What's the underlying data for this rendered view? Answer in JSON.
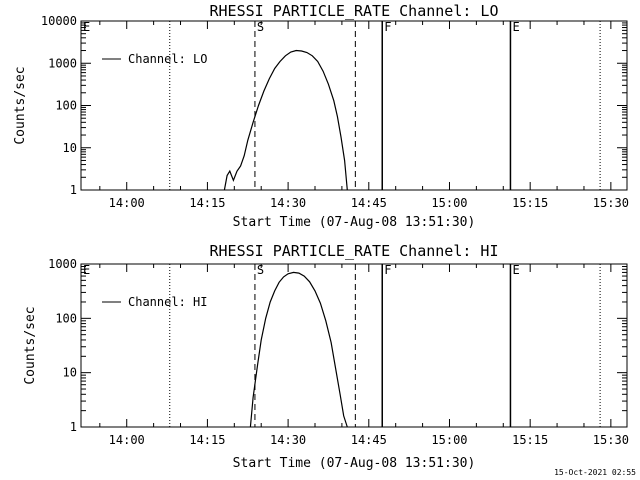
{
  "chart_data": [
    {
      "type": "line",
      "title": "RHESSI PARTICLE_RATE Channel: LO",
      "xlabel": "Start Time (07-Aug-08 13:51:30)",
      "ylabel": "Counts/sec",
      "yscale": "log",
      "xlim": [
        "13:51:30",
        "15:33:00"
      ],
      "ylim": [
        1,
        10000
      ],
      "x_ticks": [
        "14:00",
        "14:15",
        "14:30",
        "14:45",
        "15:00",
        "15:15",
        "15:30"
      ],
      "y_ticks": [
        "1",
        "10",
        "100",
        "1000",
        "10000"
      ],
      "legend": {
        "position": "top-left",
        "entries": [
          "Channel: LO"
        ]
      },
      "series": [
        {
          "name": "Channel: LO",
          "x": [
            "14:18:10",
            "14:18:40",
            "14:19:10",
            "14:19:50",
            "14:20:30",
            "14:21:10",
            "14:21:50",
            "14:22:30",
            "14:23:30",
            "14:24:30",
            "14:25:30",
            "14:26:30",
            "14:27:30",
            "14:28:30",
            "14:29:30",
            "14:30:30",
            "14:31:30",
            "14:32:30",
            "14:33:30",
            "14:34:30",
            "14:35:30",
            "14:36:30",
            "14:37:30",
            "14:38:30",
            "14:39:10",
            "14:39:50",
            "14:40:30",
            "14:41:00"
          ],
          "y": [
            1.0,
            2.2,
            2.8,
            1.7,
            2.8,
            3.7,
            6.5,
            15,
            40,
            100,
            220,
            430,
            750,
            1100,
            1500,
            1850,
            2000,
            1950,
            1800,
            1500,
            1100,
            650,
            320,
            130,
            55,
            18,
            5,
            1.0
          ]
        }
      ],
      "markers": [
        {
          "label": "E",
          "time": "13:51:30",
          "style": "dotted"
        },
        {
          "label": "",
          "time": "14:08:00",
          "style": "dotted"
        },
        {
          "label": "S",
          "time": "14:23:50",
          "style": "dashed"
        },
        {
          "label": "",
          "time": "14:42:30",
          "style": "dashed"
        },
        {
          "label": "F",
          "time": "14:47:30",
          "style": "solid"
        },
        {
          "label": "E",
          "time": "15:11:20",
          "style": "solid"
        },
        {
          "label": "",
          "time": "15:28:00",
          "style": "dotted"
        }
      ]
    },
    {
      "type": "line",
      "title": "RHESSI PARTICLE_RATE Channel: HI",
      "xlabel": "Start Time (07-Aug-08 13:51:30)",
      "ylabel": "Counts/sec",
      "yscale": "log",
      "xlim": [
        "13:51:30",
        "15:33:00"
      ],
      "ylim": [
        1,
        1000
      ],
      "x_ticks": [
        "14:00",
        "14:15",
        "14:30",
        "14:45",
        "15:00",
        "15:15",
        "15:30"
      ],
      "y_ticks": [
        "1",
        "10",
        "100",
        "1000"
      ],
      "legend": {
        "position": "top-left",
        "entries": [
          "Channel: HI"
        ]
      },
      "series": [
        {
          "name": "Channel: HI",
          "x": [
            "14:23:00",
            "14:23:30",
            "14:24:20",
            "14:25:00",
            "14:25:50",
            "14:26:40",
            "14:27:30",
            "14:28:20",
            "14:29:10",
            "14:30:00",
            "14:31:00",
            "14:32:00",
            "14:33:00",
            "14:34:00",
            "14:35:00",
            "14:36:00",
            "14:37:00",
            "14:38:00",
            "14:38:50",
            "14:39:40",
            "14:40:20",
            "14:41:00"
          ],
          "y": [
            1.0,
            3.5,
            14,
            40,
            100,
            200,
            320,
            460,
            580,
            660,
            700,
            680,
            600,
            470,
            320,
            190,
            90,
            36,
            12,
            4,
            1.6,
            1.0
          ]
        }
      ],
      "markers": [
        {
          "label": "E",
          "time": "13:51:30",
          "style": "dotted"
        },
        {
          "label": "",
          "time": "14:08:00",
          "style": "dotted"
        },
        {
          "label": "S",
          "time": "14:23:50",
          "style": "dashed"
        },
        {
          "label": "",
          "time": "14:42:30",
          "style": "dashed"
        },
        {
          "label": "F",
          "time": "14:47:30",
          "style": "solid"
        },
        {
          "label": "E",
          "time": "15:11:20",
          "style": "solid"
        },
        {
          "label": "",
          "time": "15:28:00",
          "style": "dotted"
        }
      ]
    }
  ],
  "footer": {
    "timestamp": "15-Oct-2021 02:55"
  }
}
